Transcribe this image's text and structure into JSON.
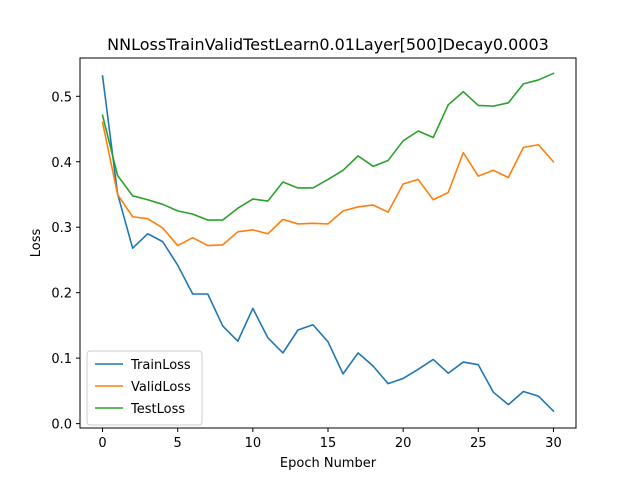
{
  "chart_data": {
    "type": "line",
    "title": "NNLossTrainValidTestLearn0.01Layer[500]Decay0.0003",
    "xlabel": "Epoch Number",
    "ylabel": "Loss",
    "xlim": [
      -1.5,
      31.5
    ],
    "ylim": [
      -0.0067,
      0.5585
    ],
    "xticks": [
      0,
      5,
      10,
      15,
      20,
      25,
      30
    ],
    "yticks": [
      0.0,
      0.1,
      0.2,
      0.3,
      0.4,
      0.5
    ],
    "ytick_labels": [
      "0.0",
      "0.1",
      "0.2",
      "0.3",
      "0.4",
      "0.5"
    ],
    "grid": false,
    "legend_position": "lower-left",
    "x": [
      0,
      1,
      2,
      3,
      4,
      5,
      6,
      7,
      8,
      9,
      10,
      11,
      12,
      13,
      14,
      15,
      16,
      17,
      18,
      19,
      20,
      21,
      22,
      23,
      24,
      25,
      26,
      27,
      28,
      29,
      30
    ],
    "series": [
      {
        "name": "TrainLoss",
        "color": "#1f77b4",
        "values": [
          0.531,
          0.351,
          0.268,
          0.29,
          0.278,
          0.242,
          0.198,
          0.198,
          0.149,
          0.126,
          0.176,
          0.131,
          0.108,
          0.143,
          0.151,
          0.125,
          0.076,
          0.108,
          0.088,
          0.061,
          0.069,
          0.083,
          0.098,
          0.077,
          0.094,
          0.09,
          0.048,
          0.029,
          0.049,
          0.042,
          0.019
        ]
      },
      {
        "name": "ValidLoss",
        "color": "#ff7f0e",
        "values": [
          0.46,
          0.35,
          0.316,
          0.313,
          0.299,
          0.272,
          0.284,
          0.272,
          0.273,
          0.293,
          0.296,
          0.29,
          0.312,
          0.305,
          0.306,
          0.305,
          0.325,
          0.331,
          0.334,
          0.323,
          0.366,
          0.373,
          0.342,
          0.353,
          0.414,
          0.378,
          0.387,
          0.376,
          0.422,
          0.426,
          0.4
        ]
      },
      {
        "name": "TestLoss",
        "color": "#2ca02c",
        "values": [
          0.471,
          0.379,
          0.348,
          0.342,
          0.335,
          0.325,
          0.32,
          0.311,
          0.311,
          0.329,
          0.343,
          0.34,
          0.369,
          0.36,
          0.36,
          0.373,
          0.387,
          0.409,
          0.393,
          0.402,
          0.432,
          0.447,
          0.437,
          0.487,
          0.507,
          0.486,
          0.485,
          0.49,
          0.519,
          0.525,
          0.535
        ]
      }
    ]
  }
}
